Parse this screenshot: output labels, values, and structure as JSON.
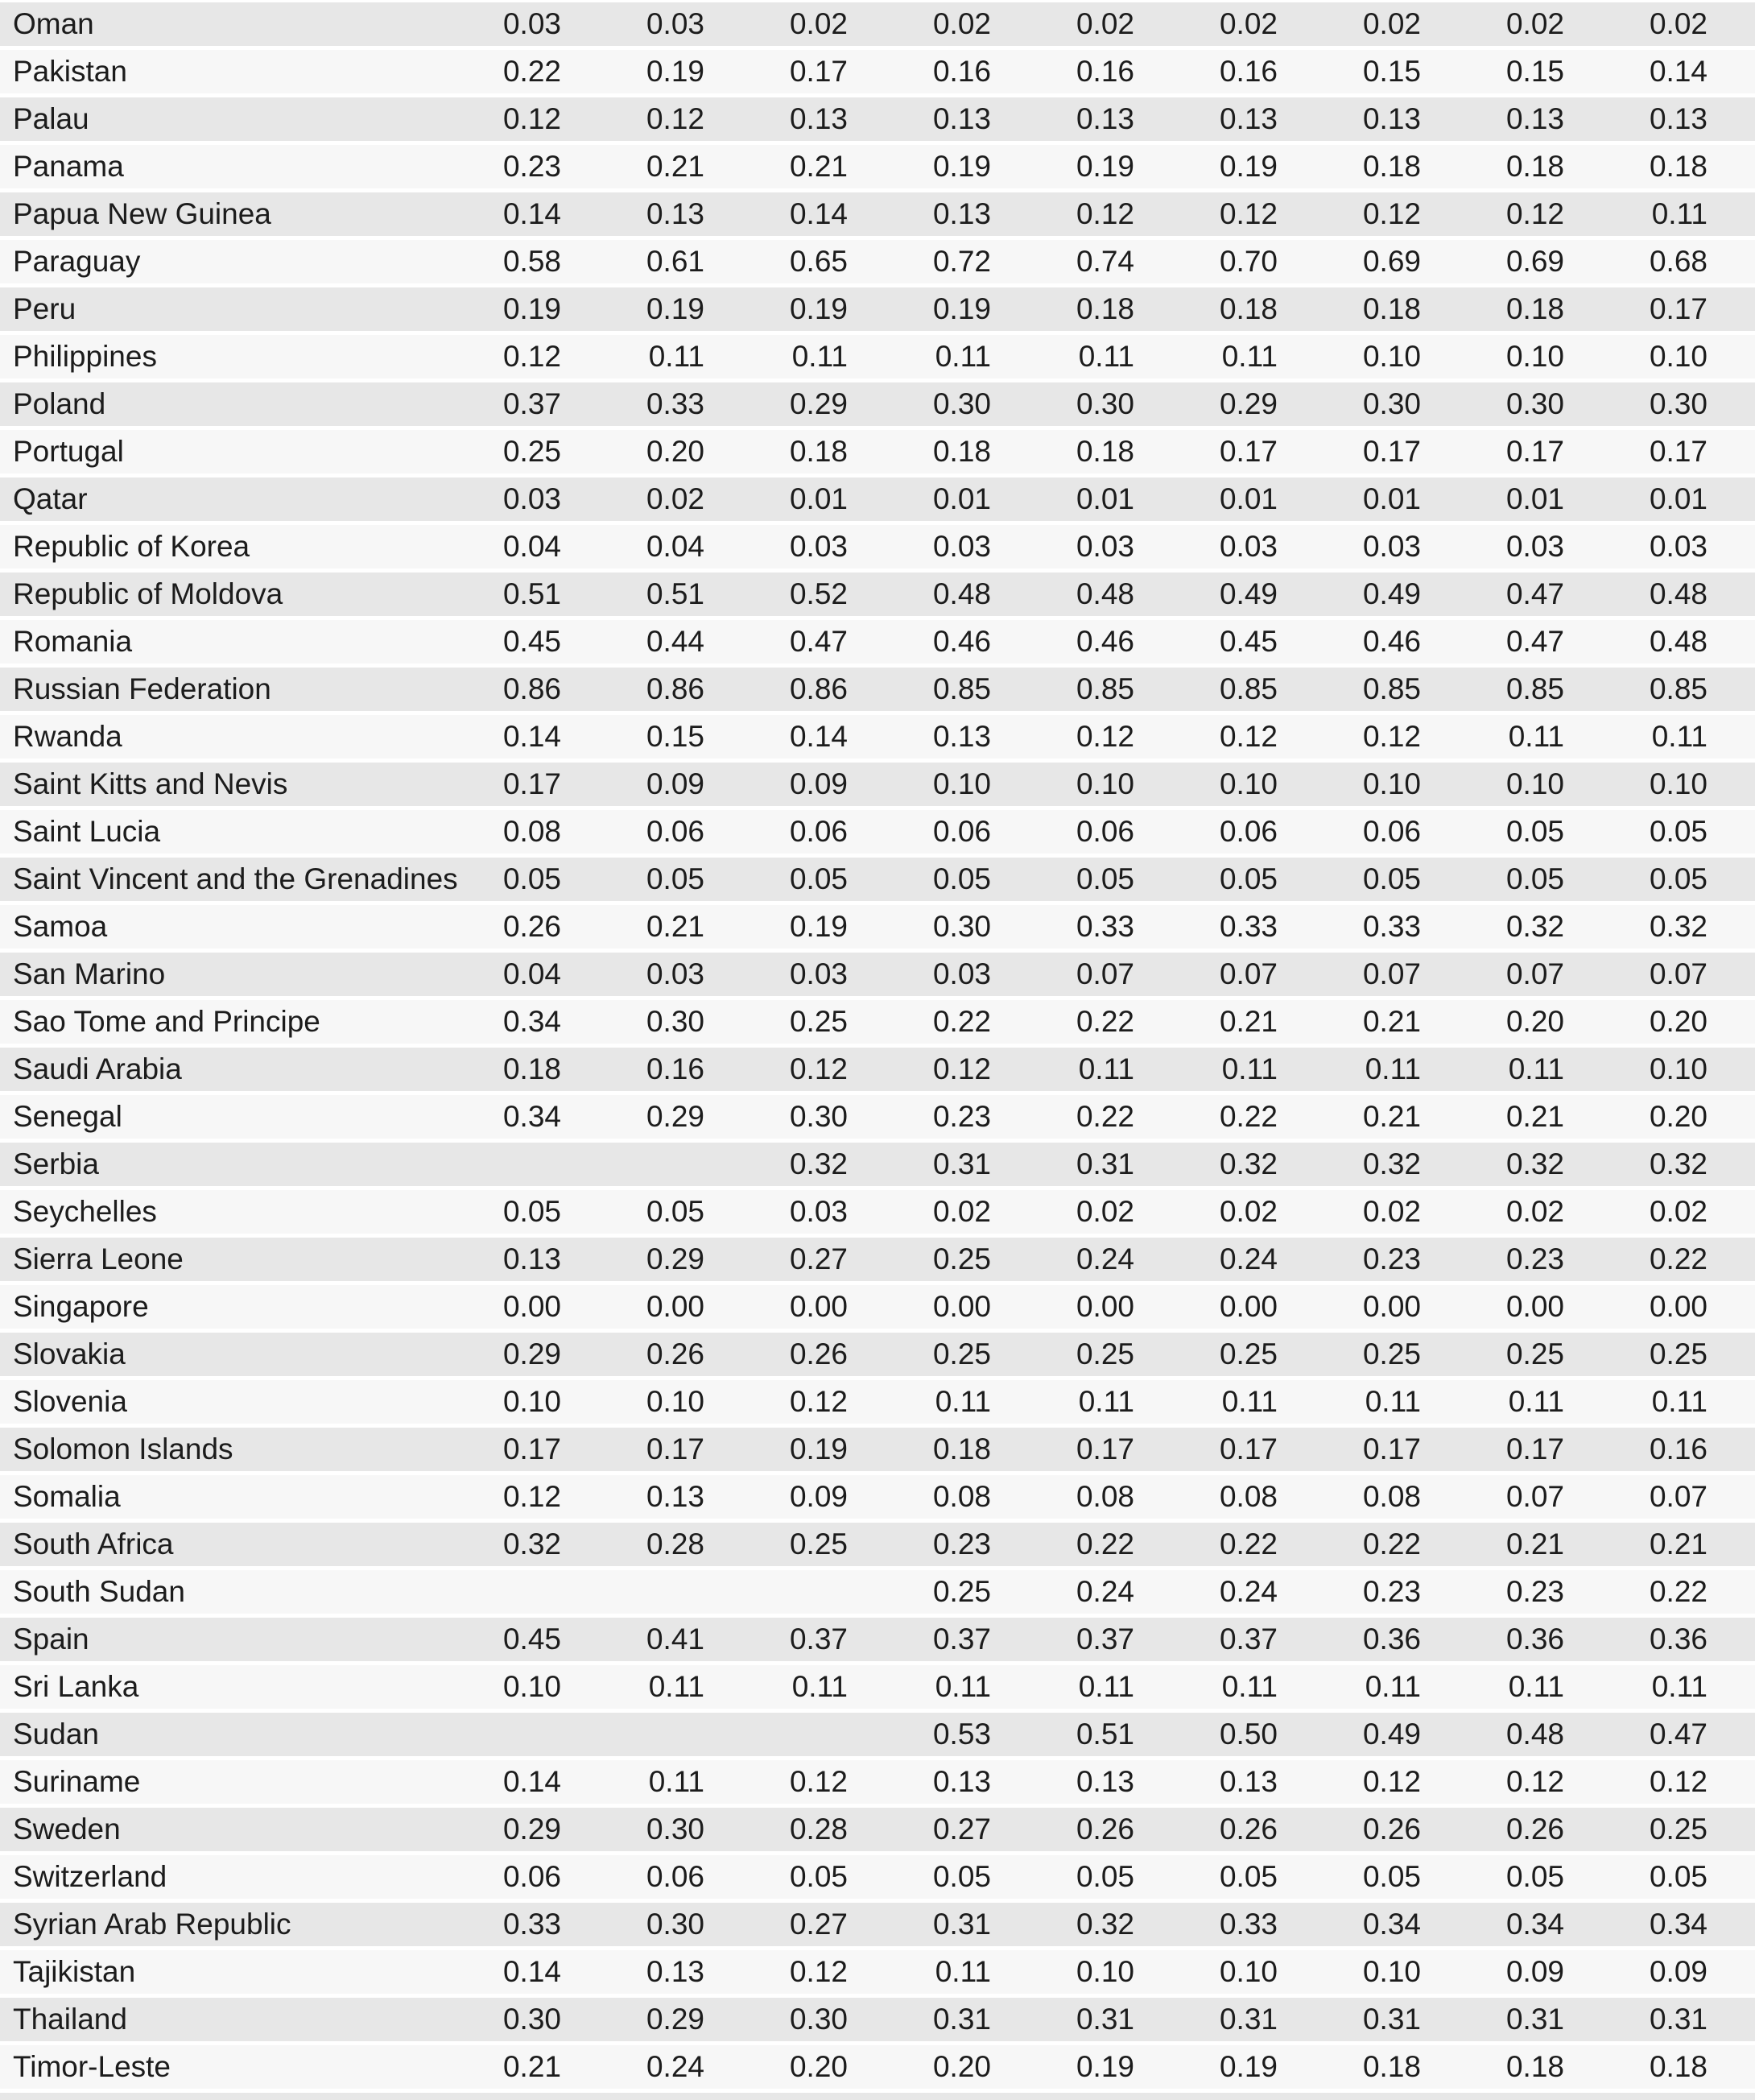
{
  "page": {
    "background": "#ffffff"
  },
  "table": {
    "text_color": "#1c1c1c",
    "row_colors": {
      "odd": "#e7e7e7",
      "even": "#f7f7f7",
      "gap": "#ffffff"
    },
    "num_value_columns": 9,
    "rows": [
      {
        "country": "Oman",
        "values": [
          "0.03",
          "0.03",
          "0.02",
          "0.02",
          "0.02",
          "0.02",
          "0.02",
          "0.02",
          "0.02"
        ]
      },
      {
        "country": "Pakistan",
        "values": [
          "0.22",
          "0.19",
          "0.17",
          "0.16",
          "0.16",
          "0.16",
          "0.15",
          "0.15",
          "0.14"
        ]
      },
      {
        "country": "Palau",
        "values": [
          "0.12",
          "0.12",
          "0.13",
          "0.13",
          "0.13",
          "0.13",
          "0.13",
          "0.13",
          "0.13"
        ]
      },
      {
        "country": "Panama",
        "values": [
          "0.23",
          "0.21",
          "0.21",
          "0.19",
          "0.19",
          "0.19",
          "0.18",
          "0.18",
          "0.18"
        ]
      },
      {
        "country": "Papua New Guinea",
        "values": [
          "0.14",
          "0.13",
          "0.14",
          "0.13",
          "0.12",
          "0.12",
          "0.12",
          "0.12",
          "0.11"
        ]
      },
      {
        "country": "Paraguay",
        "values": [
          "0.58",
          "0.61",
          "0.65",
          "0.72",
          "0.74",
          "0.70",
          "0.69",
          "0.69",
          "0.68"
        ]
      },
      {
        "country": "Peru",
        "values": [
          "0.19",
          "0.19",
          "0.19",
          "0.19",
          "0.18",
          "0.18",
          "0.18",
          "0.18",
          "0.17"
        ]
      },
      {
        "country": "Philippines",
        "values": [
          "0.12",
          "0.11",
          "0.11",
          "0.11",
          "0.11",
          "0.11",
          "0.10",
          "0.10",
          "0.10"
        ]
      },
      {
        "country": "Poland",
        "values": [
          "0.37",
          "0.33",
          "0.29",
          "0.30",
          "0.30",
          "0.29",
          "0.30",
          "0.30",
          "0.30"
        ]
      },
      {
        "country": "Portugal",
        "values": [
          "0.25",
          "0.20",
          "0.18",
          "0.18",
          "0.18",
          "0.17",
          "0.17",
          "0.17",
          "0.17"
        ]
      },
      {
        "country": "Qatar",
        "values": [
          "0.03",
          "0.02",
          "0.01",
          "0.01",
          "0.01",
          "0.01",
          "0.01",
          "0.01",
          "0.01"
        ]
      },
      {
        "country": "Republic of Korea",
        "values": [
          "0.04",
          "0.04",
          "0.03",
          "0.03",
          "0.03",
          "0.03",
          "0.03",
          "0.03",
          "0.03"
        ]
      },
      {
        "country": "Republic of Moldova",
        "values": [
          "0.51",
          "0.51",
          "0.52",
          "0.48",
          "0.48",
          "0.49",
          "0.49",
          "0.47",
          "0.48"
        ]
      },
      {
        "country": "Romania",
        "values": [
          "0.45",
          "0.44",
          "0.47",
          "0.46",
          "0.46",
          "0.45",
          "0.46",
          "0.47",
          "0.48"
        ]
      },
      {
        "country": "Russian Federation",
        "values": [
          "0.86",
          "0.86",
          "0.86",
          "0.85",
          "0.85",
          "0.85",
          "0.85",
          "0.85",
          "0.85"
        ]
      },
      {
        "country": "Rwanda",
        "values": [
          "0.14",
          "0.15",
          "0.14",
          "0.13",
          "0.12",
          "0.12",
          "0.12",
          "0.11",
          "0.11"
        ]
      },
      {
        "country": "Saint Kitts and Nevis",
        "values": [
          "0.17",
          "0.09",
          "0.09",
          "0.10",
          "0.10",
          "0.10",
          "0.10",
          "0.10",
          "0.10"
        ]
      },
      {
        "country": "Saint Lucia",
        "values": [
          "0.08",
          "0.06",
          "0.06",
          "0.06",
          "0.06",
          "0.06",
          "0.06",
          "0.05",
          "0.05"
        ]
      },
      {
        "country": "Saint Vincent and the Grenadines",
        "values": [
          "0.05",
          "0.05",
          "0.05",
          "0.05",
          "0.05",
          "0.05",
          "0.05",
          "0.05",
          "0.05"
        ]
      },
      {
        "country": "Samoa",
        "values": [
          "0.26",
          "0.21",
          "0.19",
          "0.30",
          "0.33",
          "0.33",
          "0.33",
          "0.32",
          "0.32"
        ]
      },
      {
        "country": "San Marino",
        "values": [
          "0.04",
          "0.03",
          "0.03",
          "0.03",
          "0.07",
          "0.07",
          "0.07",
          "0.07",
          "0.07"
        ]
      },
      {
        "country": "Sao Tome and Principe",
        "values": [
          "0.34",
          "0.30",
          "0.25",
          "0.22",
          "0.22",
          "0.21",
          "0.21",
          "0.20",
          "0.20"
        ]
      },
      {
        "country": "Saudi Arabia",
        "values": [
          "0.18",
          "0.16",
          "0.12",
          "0.12",
          "0.11",
          "0.11",
          "0.11",
          "0.11",
          "0.10"
        ]
      },
      {
        "country": "Senegal",
        "values": [
          "0.34",
          "0.29",
          "0.30",
          "0.23",
          "0.22",
          "0.22",
          "0.21",
          "0.21",
          "0.20"
        ]
      },
      {
        "country": "Serbia",
        "values": [
          "",
          "",
          "0.32",
          "0.31",
          "0.31",
          "0.32",
          "0.32",
          "0.32",
          "0.32"
        ]
      },
      {
        "country": "Seychelles",
        "values": [
          "0.05",
          "0.05",
          "0.03",
          "0.02",
          "0.02",
          "0.02",
          "0.02",
          "0.02",
          "0.02"
        ]
      },
      {
        "country": "Sierra Leone",
        "values": [
          "0.13",
          "0.29",
          "0.27",
          "0.25",
          "0.24",
          "0.24",
          "0.23",
          "0.23",
          "0.22"
        ]
      },
      {
        "country": "Singapore",
        "values": [
          "0.00",
          "0.00",
          "0.00",
          "0.00",
          "0.00",
          "0.00",
          "0.00",
          "0.00",
          "0.00"
        ]
      },
      {
        "country": "Slovakia",
        "values": [
          "0.29",
          "0.26",
          "0.26",
          "0.25",
          "0.25",
          "0.25",
          "0.25",
          "0.25",
          "0.25"
        ]
      },
      {
        "country": "Slovenia",
        "values": [
          "0.10",
          "0.10",
          "0.12",
          "0.11",
          "0.11",
          "0.11",
          "0.11",
          "0.11",
          "0.11"
        ]
      },
      {
        "country": "Solomon Islands",
        "values": [
          "0.17",
          "0.17",
          "0.19",
          "0.18",
          "0.17",
          "0.17",
          "0.17",
          "0.17",
          "0.16"
        ]
      },
      {
        "country": "Somalia",
        "values": [
          "0.12",
          "0.13",
          "0.09",
          "0.08",
          "0.08",
          "0.08",
          "0.08",
          "0.07",
          "0.07"
        ]
      },
      {
        "country": "South Africa",
        "values": [
          "0.32",
          "0.28",
          "0.25",
          "0.23",
          "0.22",
          "0.22",
          "0.22",
          "0.21",
          "0.21"
        ]
      },
      {
        "country": "South Sudan",
        "values": [
          "",
          "",
          "",
          "0.25",
          "0.24",
          "0.24",
          "0.23",
          "0.23",
          "0.22"
        ]
      },
      {
        "country": "Spain",
        "values": [
          "0.45",
          "0.41",
          "0.37",
          "0.37",
          "0.37",
          "0.37",
          "0.36",
          "0.36",
          "0.36"
        ]
      },
      {
        "country": "Sri Lanka",
        "values": [
          "0.10",
          "0.11",
          "0.11",
          "0.11",
          "0.11",
          "0.11",
          "0.11",
          "0.11",
          "0.11"
        ]
      },
      {
        "country": "Sudan",
        "values": [
          "",
          "",
          "",
          "0.53",
          "0.51",
          "0.50",
          "0.49",
          "0.48",
          "0.47"
        ]
      },
      {
        "country": "Suriname",
        "values": [
          "0.14",
          "0.11",
          "0.12",
          "0.13",
          "0.13",
          "0.13",
          "0.12",
          "0.12",
          "0.12"
        ]
      },
      {
        "country": "Sweden",
        "values": [
          "0.29",
          "0.30",
          "0.28",
          "0.27",
          "0.26",
          "0.26",
          "0.26",
          "0.26",
          "0.25"
        ]
      },
      {
        "country": "Switzerland",
        "values": [
          "0.06",
          "0.06",
          "0.05",
          "0.05",
          "0.05",
          "0.05",
          "0.05",
          "0.05",
          "0.05"
        ]
      },
      {
        "country": "Syrian Arab Republic",
        "values": [
          "0.33",
          "0.30",
          "0.27",
          "0.31",
          "0.32",
          "0.33",
          "0.34",
          "0.34",
          "0.34"
        ]
      },
      {
        "country": "Tajikistan",
        "values": [
          "0.14",
          "0.13",
          "0.12",
          "0.11",
          "0.10",
          "0.10",
          "0.10",
          "0.09",
          "0.09"
        ]
      },
      {
        "country": "Thailand",
        "values": [
          "0.30",
          "0.29",
          "0.30",
          "0.31",
          "0.31",
          "0.31",
          "0.31",
          "0.31",
          "0.31"
        ]
      },
      {
        "country": "Timor-Leste",
        "values": [
          "0.21",
          "0.24",
          "0.20",
          "0.20",
          "0.19",
          "0.19",
          "0.18",
          "0.18",
          "0.18"
        ]
      }
    ]
  }
}
